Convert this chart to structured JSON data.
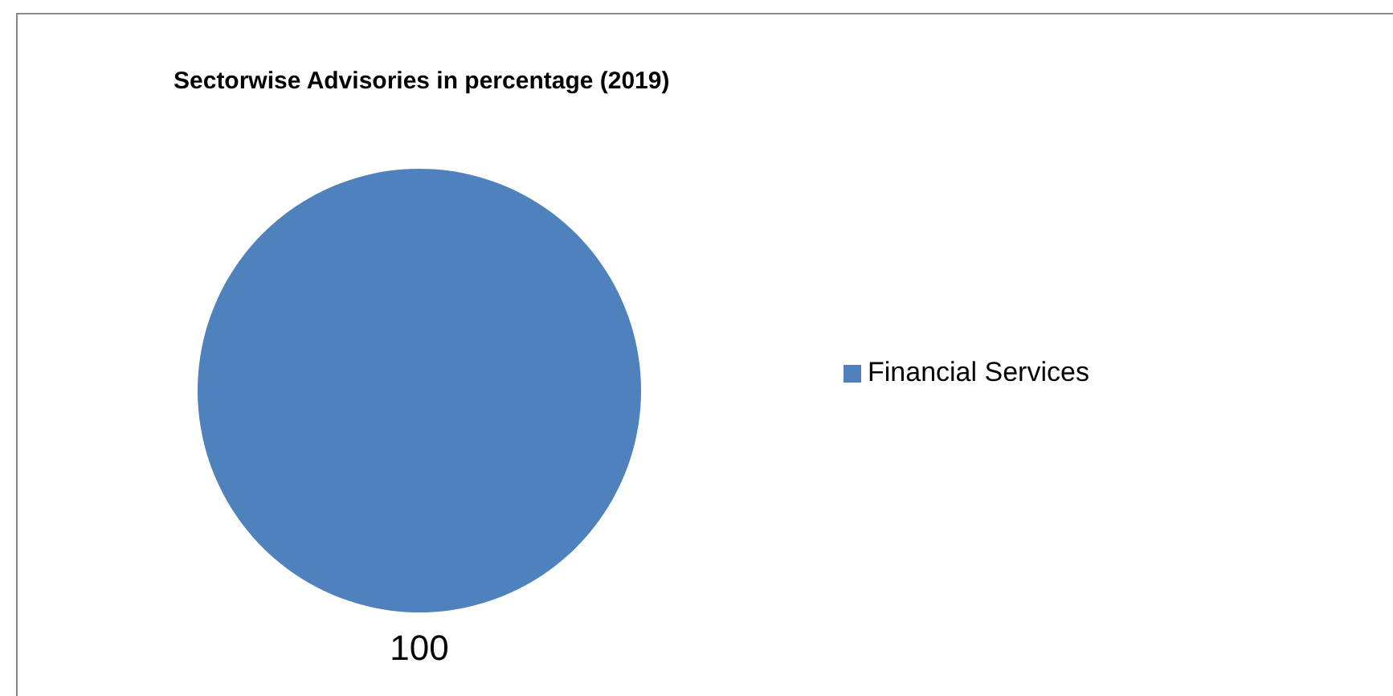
{
  "chart_data": {
    "type": "pie",
    "title": "Sectorwise Advisories in percentage (2019)",
    "categories": [
      "Financial Services"
    ],
    "values": [
      100
    ],
    "colors": [
      "#4f81bd"
    ],
    "data_labels": true,
    "legend": "right"
  }
}
